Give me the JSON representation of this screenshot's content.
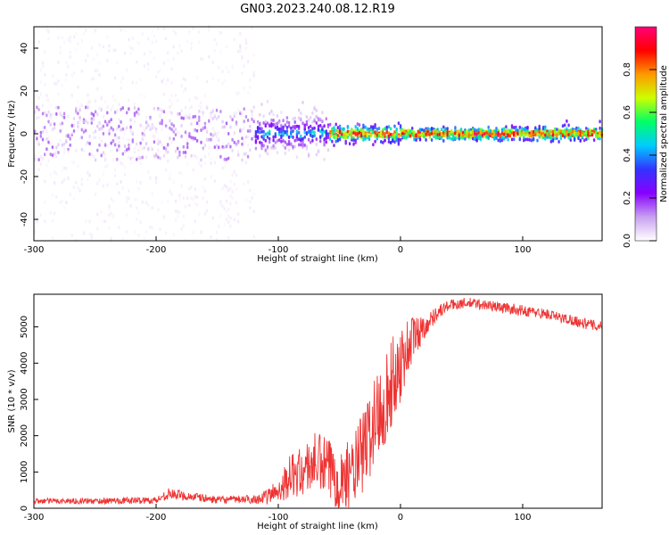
{
  "title": "GN03.2023.240.08.12.R19",
  "chart_data": [
    {
      "type": "heatmap",
      "title": "GN03.2023.240.08.12.R19",
      "xlabel": "Height of straight line (km)",
      "ylabel": "Frequency (Hz)",
      "xlim": [
        -300,
        165
      ],
      "ylim": [
        -50,
        50
      ],
      "xticks": [
        -300,
        -200,
        -100,
        0,
        100
      ],
      "yticks": [
        -40,
        -20,
        0,
        20,
        40
      ],
      "xtick_labels": [
        "-300",
        "-200",
        "-100",
        "0",
        "100"
      ],
      "ytick_labels": [
        "-40",
        "-20",
        "0",
        "20",
        "40"
      ],
      "colorbar": {
        "label": "Normalized spectral amplitude",
        "range": [
          0.0,
          1.0
        ],
        "ticks": [
          0.0,
          0.2,
          0.4,
          0.6,
          0.8
        ],
        "tick_labels": [
          "0.0",
          "0.2",
          "0.4",
          "0.6",
          "0.8"
        ],
        "colors": [
          "#ffffff",
          "#c8a0f0",
          "#8800ff",
          "#3333ff",
          "#00ccff",
          "#00ff66",
          "#ccff00",
          "#ff9900",
          "#ff0000",
          "#ff0077"
        ]
      },
      "description_bands": [
        {
          "x_range": [
            -300,
            -120
          ],
          "freq_spread_hz": 50,
          "peak_amplitude": 0.15
        },
        {
          "x_range": [
            -120,
            -60
          ],
          "freq_spread_hz": 10,
          "peak_amplitude": 0.4
        },
        {
          "x_range": [
            -60,
            0
          ],
          "freq_spread_hz": 4,
          "peak_amplitude": 0.9
        },
        {
          "x_range": [
            0,
            165
          ],
          "freq_spread_hz": 3,
          "peak_amplitude": 0.9
        }
      ]
    },
    {
      "type": "line",
      "xlabel": "Height of straight line (km)",
      "ylabel": "SNR (10 * v/v)",
      "xlim": [
        -300,
        165
      ],
      "ylim": [
        0,
        5900
      ],
      "xticks": [
        -300,
        -200,
        -100,
        0,
        100
      ],
      "yticks": [
        0,
        1000,
        2000,
        3000,
        4000,
        5000
      ],
      "xtick_labels": [
        "-300",
        "-200",
        "-100",
        "0",
        "100"
      ],
      "ytick_labels": [
        "0",
        "1000",
        "2000",
        "3000",
        "4000",
        "5000"
      ],
      "color": "#ee3333",
      "series": [
        {
          "name": "SNR",
          "x": [
            -300,
            -250,
            -200,
            -190,
            -150,
            -120,
            -110,
            -100,
            -90,
            -80,
            -70,
            -60,
            -50,
            -40,
            -30,
            -20,
            -10,
            0,
            10,
            20,
            30,
            40,
            50,
            60,
            70,
            80,
            90,
            100,
            110,
            120,
            130,
            140,
            150,
            165
          ],
          "values": [
            200,
            200,
            220,
            400,
            230,
            250,
            300,
            500,
            900,
            1000,
            1300,
            1100,
            800,
            900,
            1600,
            2500,
            3200,
            4000,
            4700,
            5000,
            5400,
            5600,
            5650,
            5650,
            5600,
            5550,
            5500,
            5450,
            5400,
            5350,
            5250,
            5200,
            5100,
            5000
          ],
          "noise_amplitude": [
            80,
            80,
            100,
            150,
            100,
            120,
            200,
            350,
            600,
            700,
            800,
            900,
            900,
            1000,
            1200,
            1300,
            1300,
            1100,
            700,
            300,
            200,
            150,
            150,
            150,
            150,
            150,
            150,
            150,
            150,
            150,
            150,
            150,
            150,
            150
          ]
        }
      ]
    }
  ]
}
